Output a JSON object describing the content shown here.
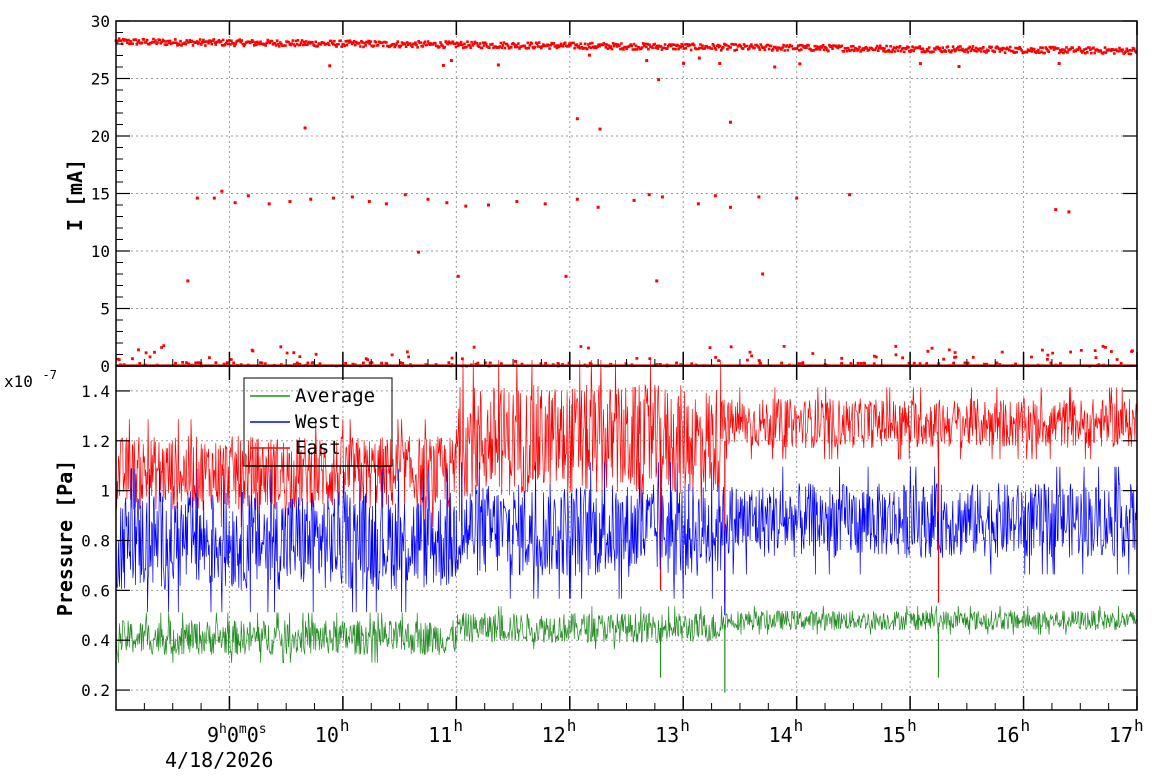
{
  "chart_data": [
    {
      "type": "scatter",
      "panel": "top",
      "ylabel": "I [mA]",
      "xlim": [
        "08:00",
        "17:00"
      ],
      "ylim": [
        0,
        30
      ],
      "grid": true,
      "yticks": [
        "0",
        "5",
        "10",
        "15",
        "20",
        "25",
        "30"
      ],
      "series": [
        {
          "color": "#ff0000",
          "baseline_mA": {
            "start_time": "08:00",
            "start": 28.2,
            "end_time": "17:00",
            "end": 27.4
          },
          "outlier_points": [
            [
              "09:40",
              20.7
            ],
            [
              "12:04",
              21.5
            ],
            [
              "12:16",
              20.6
            ],
            [
              "13:25",
              21.2
            ],
            [
              "12:47",
              24.9
            ],
            [
              "08:43",
              14.6
            ],
            [
              "08:52",
              14.6
            ],
            [
              "08:56",
              15.2
            ],
            [
              "09:03",
              14.2
            ],
            [
              "09:10",
              14.8
            ],
            [
              "09:21",
              14.1
            ],
            [
              "09:32",
              14.3
            ],
            [
              "09:43",
              14.5
            ],
            [
              "09:55",
              14.6
            ],
            [
              "10:05",
              14.7
            ],
            [
              "10:14",
              14.3
            ],
            [
              "10:23",
              14.1
            ],
            [
              "10:33",
              14.9
            ],
            [
              "10:45",
              14.5
            ],
            [
              "10:55",
              14.2
            ],
            [
              "11:05",
              13.9
            ],
            [
              "11:17",
              14.0
            ],
            [
              "11:32",
              14.3
            ],
            [
              "11:47",
              14.1
            ],
            [
              "12:04",
              14.5
            ],
            [
              "12:15",
              13.8
            ],
            [
              "12:34",
              14.4
            ],
            [
              "12:42",
              14.9
            ],
            [
              "12:49",
              14.7
            ],
            [
              "13:08",
              14.1
            ],
            [
              "13:17",
              14.8
            ],
            [
              "13:25",
              13.8
            ],
            [
              "13:40",
              14.7
            ],
            [
              "14:00",
              14.6
            ],
            [
              "14:28",
              14.9
            ],
            [
              "16:17",
              13.6
            ],
            [
              "16:24",
              13.4
            ],
            [
              "08:38",
              7.4
            ],
            [
              "11:01",
              7.8
            ],
            [
              "11:58",
              7.8
            ],
            [
              "12:46",
              7.4
            ],
            [
              "13:42",
              8.0
            ],
            [
              "10:40",
              9.9
            ]
          ],
          "zero_points_note": "many readings near 0 to 1.8 mA",
          "near_zero_range": [
            0,
            1.8
          ]
        }
      ]
    },
    {
      "type": "line",
      "panel": "bottom",
      "ylabel": "Pressure [Pa]",
      "y_multiplier": "x10-7",
      "xlim": [
        "08:00",
        "17:00"
      ],
      "ylim": [
        0.12,
        1.5
      ],
      "grid": true,
      "yticks": [
        "0.2",
        "0.4",
        "0.6",
        "0.8",
        "1",
        "1.2",
        "1.4"
      ],
      "legend_position": "top-left",
      "series": [
        {
          "name": "Average",
          "color": "#228b22",
          "segments": [
            {
              "from": "08:00",
              "to": "11:00",
              "center": 0.41,
              "spread": 0.14
            },
            {
              "from": "11:00",
              "to": "13:20",
              "center": 0.45,
              "spread": 0.12
            },
            {
              "from": "13:20",
              "to": "17:00",
              "center": 0.48,
              "spread": 0.08
            }
          ],
          "dips": [
            [
              "12:48",
              0.25
            ],
            [
              "13:22",
              0.19
            ],
            [
              "15:15",
              0.25
            ]
          ]
        },
        {
          "name": "West",
          "color": "#0000ff",
          "segments": [
            {
              "from": "08:00",
              "to": "11:00",
              "center": 0.8,
              "spread": 0.4
            },
            {
              "from": "11:00",
              "to": "13:20",
              "center": 0.84,
              "spread": 0.38
            },
            {
              "from": "13:20",
              "to": "17:00",
              "center": 0.88,
              "spread": 0.3
            }
          ],
          "dips": [
            [
              "13:22",
              0.5
            ]
          ]
        },
        {
          "name": "East",
          "color": "#ff0000",
          "segments": [
            {
              "from": "08:00",
              "to": "11:00",
              "center": 1.07,
              "spread": 0.3
            },
            {
              "from": "11:00",
              "to": "13:20",
              "center": 1.2,
              "spread": 0.45
            },
            {
              "from": "13:20",
              "to": "17:00",
              "center": 1.27,
              "spread": 0.2
            }
          ],
          "dips": [
            [
              "12:48",
              0.6
            ],
            [
              "13:22",
              0.55
            ],
            [
              "15:15",
              0.55
            ]
          ]
        }
      ]
    }
  ],
  "time_axis": {
    "ticks": [
      {
        "label": "9",
        "unit": "h"
      },
      {
        "label": "10",
        "unit": "h"
      },
      {
        "label": "11",
        "unit": "h"
      },
      {
        "label": "12",
        "unit": "h"
      },
      {
        "label": "13",
        "unit": "h"
      },
      {
        "label": "14",
        "unit": "h"
      },
      {
        "label": "15",
        "unit": "h"
      },
      {
        "label": "16",
        "unit": "h"
      },
      {
        "label": "17",
        "unit": "h"
      }
    ],
    "offset_parts": [
      "9",
      "h",
      "0",
      "m",
      "0",
      "s"
    ],
    "date": "4/18/2026"
  }
}
